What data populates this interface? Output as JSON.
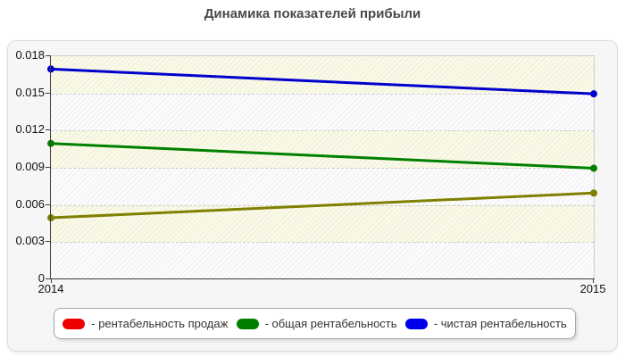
{
  "page": {
    "title": "Динамика показателей прибыли"
  },
  "chart_data": {
    "type": "line",
    "title": "Динамика показателей прибыли",
    "x_labels": [
      "2014",
      "2015"
    ],
    "y_ticks": [
      "0",
      "0.003",
      "0.006",
      "0.009",
      "0.012",
      "0.015",
      "0.018"
    ],
    "ylim": [
      0,
      0.018
    ],
    "grid": "horizontal-dashed",
    "plot_band_colors": [
      "#fafae6",
      "#fcfcfe"
    ],
    "legend_position": "bottom",
    "series": [
      {
        "name": "рентабельность продаж",
        "legend_label": "- рентабельность продаж",
        "legend_color": "#ee0000",
        "line_color": "#808000",
        "values": [
          0.005,
          0.007
        ]
      },
      {
        "name": "общая рентабельность",
        "legend_label": "- общая рентабельность",
        "legend_color": "#008000",
        "line_color": "#008000",
        "values": [
          0.011,
          0.009
        ]
      },
      {
        "name": "чистая рентабельность",
        "legend_label": "- чистая рентабельность",
        "legend_color": "#0000ee",
        "line_color": "#0000cc",
        "values": [
          0.017,
          0.015
        ]
      }
    ]
  }
}
